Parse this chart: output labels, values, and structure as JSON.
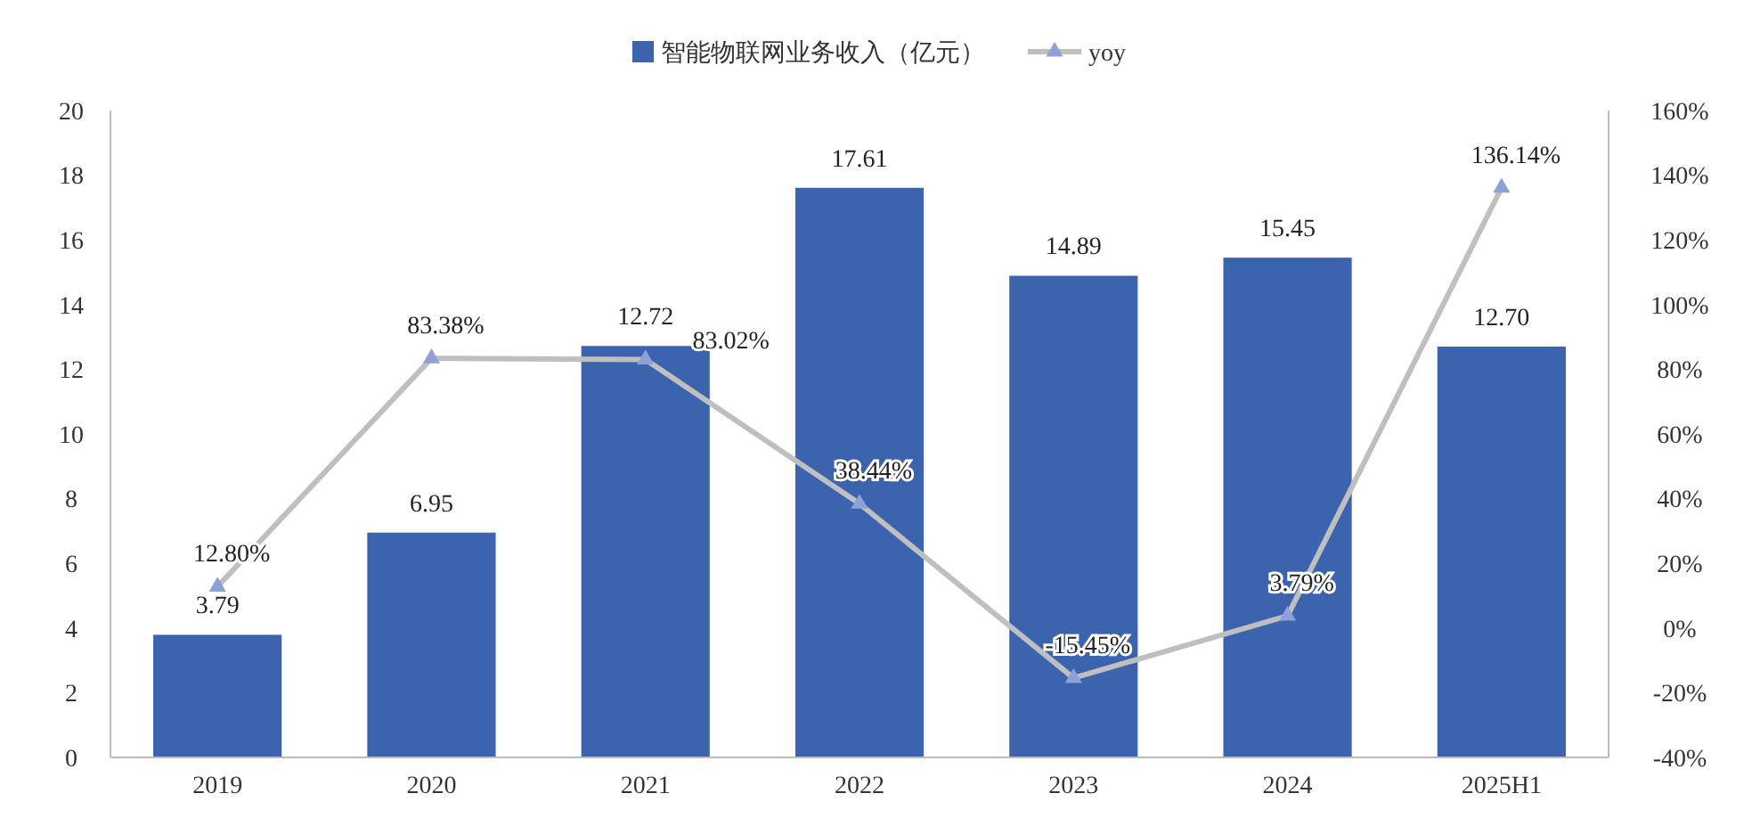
{
  "chart_data": {
    "type": "bar",
    "categories": [
      "2019",
      "2020",
      "2021",
      "2022",
      "2023",
      "2024",
      "2025H1"
    ],
    "series": [
      {
        "name": "智能物联网业务收入（亿元）",
        "color": "#3c63ad",
        "values": [
          3.79,
          6.95,
          12.72,
          17.61,
          14.89,
          15.45,
          12.7
        ],
        "value_labels": [
          "3.79",
          "6.95",
          "12.72",
          "17.61",
          "14.89",
          "15.45",
          "12.70"
        ]
      },
      {
        "name": "yoy",
        "type": "line",
        "axis": "y2",
        "color": "#bfbfbf",
        "marker": "triangle",
        "values": [
          12.8,
          83.38,
          83.02,
          38.44,
          -15.45,
          3.79,
          136.14
        ],
        "value_labels": [
          "12.80%",
          "83.38%",
          "83.02%",
          "38.44%",
          "-15.45%",
          "3.79%",
          "136.14%"
        ]
      }
    ],
    "ylim": [
      0,
      20
    ],
    "yticks": [
      0,
      2,
      4,
      6,
      8,
      10,
      12,
      14,
      16,
      18,
      20
    ],
    "y2lim": [
      -40,
      160
    ],
    "y2ticks": [
      {
        "value": -40,
        "label": "-40%"
      },
      {
        "value": -20,
        "label": "-20%"
      },
      {
        "value": 0,
        "label": "0%"
      },
      {
        "value": 20,
        "label": "20%"
      },
      {
        "value": 40,
        "label": "40%"
      },
      {
        "value": 60,
        "label": "60%"
      },
      {
        "value": 80,
        "label": "80%"
      },
      {
        "value": 100,
        "label": "100%"
      },
      {
        "value": 120,
        "label": "120%"
      },
      {
        "value": 140,
        "label": "140%"
      },
      {
        "value": 160,
        "label": "160%"
      }
    ],
    "legend": "top",
    "grid": false
  }
}
